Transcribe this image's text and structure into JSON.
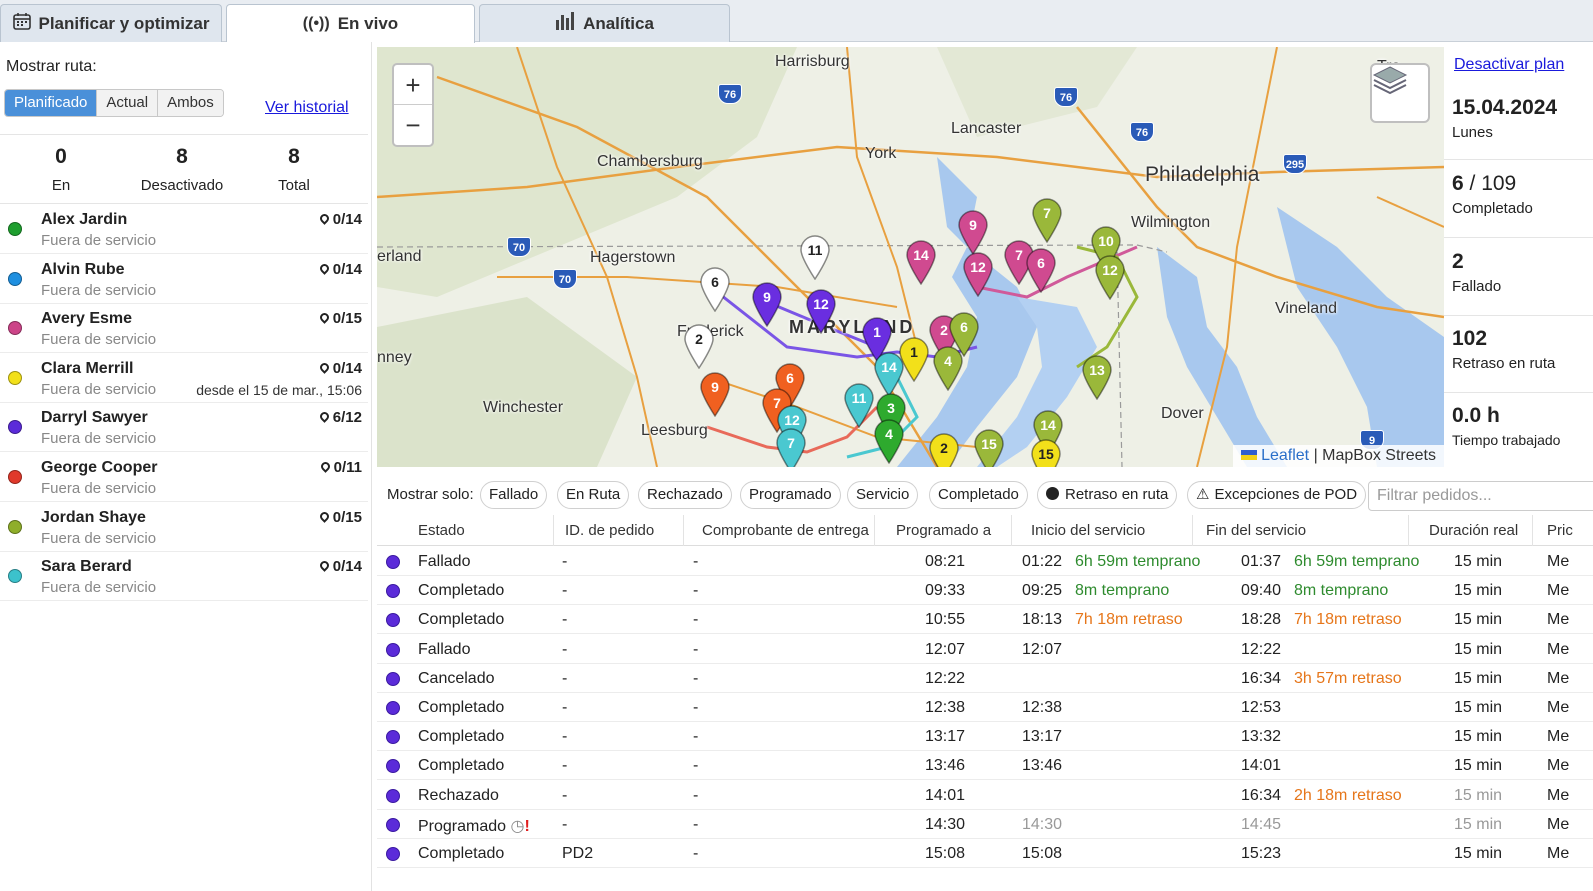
{
  "tabs": [
    {
      "label": "Planificar y optimizar",
      "icon": "calendar-icon"
    },
    {
      "label": "En vivo",
      "icon": "broadcast-icon"
    },
    {
      "label": "Analítica",
      "icon": "bar-chart-icon"
    }
  ],
  "sidebar": {
    "show_route_label": "Mostrar ruta:",
    "route_options": [
      "Planificado",
      "Actual",
      "Ambos"
    ],
    "selected_route_option": "Planificado",
    "history_link": "Ver historial",
    "stats": [
      {
        "value": "0",
        "label": "En"
      },
      {
        "value": "8",
        "label": "Desactivado"
      },
      {
        "value": "8",
        "label": "Total"
      }
    ],
    "drivers": [
      {
        "name": "Alex Jardin",
        "status": "Fuera de servicio",
        "count": "0/14",
        "since": "",
        "color": "#1e9e2e"
      },
      {
        "name": "Alvin Rube",
        "status": "Fuera de servicio",
        "count": "0/14",
        "since": "",
        "color": "#1e8fe0"
      },
      {
        "name": "Avery Esme",
        "status": "Fuera de servicio",
        "count": "0/15",
        "since": "",
        "color": "#cc4488"
      },
      {
        "name": "Clara Merrill",
        "status": "Fuera de servicio",
        "count": "0/14",
        "since": "desde el 15 de mar., 15:06",
        "color": "#f2e01a"
      },
      {
        "name": "Darryl Sawyer",
        "status": "Fuera de servicio",
        "count": "6/12",
        "since": "",
        "color": "#5b2bd9"
      },
      {
        "name": "George Cooper",
        "status": "Fuera de servicio",
        "count": "0/11",
        "since": "",
        "color": "#e0392b"
      },
      {
        "name": "Jordan Shaye",
        "status": "Fuera de servicio",
        "count": "0/15",
        "since": "",
        "color": "#8fae2a"
      },
      {
        "name": "Sara Berard",
        "status": "Fuera de servicio",
        "count": "0/14",
        "since": "",
        "color": "#3cc2cc"
      }
    ]
  },
  "map": {
    "zoom_in": "+",
    "zoom_out": "−",
    "attribution_leaflet": "Leaflet",
    "attribution_rest": "| MapBox Streets",
    "places": [
      {
        "name": "Harrisburg"
      },
      {
        "name": "Lancaster"
      },
      {
        "name": "York"
      },
      {
        "name": "Chambersburg"
      },
      {
        "name": "Philadelphia"
      },
      {
        "name": "Wilmington"
      },
      {
        "name": "Hagerstown"
      },
      {
        "name": "Frederick"
      },
      {
        "name": "MARYLAND"
      },
      {
        "name": "Vineland"
      },
      {
        "name": "Winchester"
      },
      {
        "name": "Leesburg"
      },
      {
        "name": "Dover"
      },
      {
        "name": "Tre"
      },
      {
        "name": "erland"
      },
      {
        "name": "nney"
      }
    ],
    "highway_shields": [
      "76",
      "76",
      "76",
      "70",
      "70",
      "295",
      "9"
    ]
  },
  "summary": {
    "deactivate_link": "Desactivar plan",
    "date": "15.04.2024",
    "weekday": "Lunes",
    "completed_value": "6",
    "completed_total": "/ 109",
    "completed_label": "Completado",
    "failed_value": "2",
    "failed_label": "Fallado",
    "delay_value": "102",
    "delay_label": "Retraso en ruta",
    "worked_value": "0.0 h",
    "worked_label": "Tiempo trabajado"
  },
  "filters": {
    "label": "Mostrar solo:",
    "chips": [
      "Fallado",
      "En Ruta",
      "Rechazado",
      "Programado",
      "Servicio",
      "Completado",
      "Retraso en ruta",
      "Excepciones de POD"
    ],
    "search_placeholder": "Filtrar pedidos..."
  },
  "table": {
    "columns": [
      "Estado",
      "ID. de pedido",
      "Comprobante de entrega",
      "Programado a",
      "Inicio del servicio",
      "Fin del servicio",
      "Duración real",
      "Pric"
    ],
    "rows": [
      {
        "estado": "Fallado",
        "id": "-",
        "pod": "-",
        "prog": "08:21",
        "inicio": "01:22",
        "inicio_note": "6h 59m temprano",
        "inicio_note_type": "early",
        "fin": "01:37",
        "fin_note": "6h 59m temprano",
        "fin_note_type": "early",
        "dur": "15 min",
        "pri": "Me"
      },
      {
        "estado": "Completado",
        "id": "-",
        "pod": "-",
        "prog": "09:33",
        "inicio": "09:25",
        "inicio_note": "8m temprano",
        "inicio_note_type": "early",
        "fin": "09:40",
        "fin_note": "8m temprano",
        "fin_note_type": "early",
        "dur": "15 min",
        "pri": "Me"
      },
      {
        "estado": "Completado",
        "id": "-",
        "pod": "-",
        "prog": "10:55",
        "inicio": "18:13",
        "inicio_note": "7h 18m retraso",
        "inicio_note_type": "late",
        "fin": "18:28",
        "fin_note": "7h 18m retraso",
        "fin_note_type": "late",
        "dur": "15 min",
        "pri": "Me"
      },
      {
        "estado": "Fallado",
        "id": "-",
        "pod": "-",
        "prog": "12:07",
        "inicio": "12:07",
        "inicio_note": "",
        "inicio_note_type": "",
        "fin": "12:22",
        "fin_note": "",
        "fin_note_type": "",
        "dur": "15 min",
        "pri": "Me"
      },
      {
        "estado": "Cancelado",
        "id": "-",
        "pod": "-",
        "prog": "12:22",
        "inicio": "",
        "inicio_note": "",
        "inicio_note_type": "",
        "fin": "16:34",
        "fin_note": "3h 57m retraso",
        "fin_note_type": "late",
        "dur": "15 min",
        "pri": "Me"
      },
      {
        "estado": "Completado",
        "id": "-",
        "pod": "-",
        "prog": "12:38",
        "inicio": "12:38",
        "inicio_note": "",
        "inicio_note_type": "",
        "fin": "12:53",
        "fin_note": "",
        "fin_note_type": "",
        "dur": "15 min",
        "pri": "Me"
      },
      {
        "estado": "Completado",
        "id": "-",
        "pod": "-",
        "prog": "13:17",
        "inicio": "13:17",
        "inicio_note": "",
        "inicio_note_type": "",
        "fin": "13:32",
        "fin_note": "",
        "fin_note_type": "",
        "dur": "15 min",
        "pri": "Me"
      },
      {
        "estado": "Completado",
        "id": "-",
        "pod": "-",
        "prog": "13:46",
        "inicio": "13:46",
        "inicio_note": "",
        "inicio_note_type": "",
        "fin": "14:01",
        "fin_note": "",
        "fin_note_type": "",
        "dur": "15 min",
        "pri": "Me"
      },
      {
        "estado": "Rechazado",
        "id": "-",
        "pod": "-",
        "prog": "14:01",
        "inicio": "",
        "inicio_note": "",
        "inicio_note_type": "",
        "fin": "16:34",
        "fin_note": "2h 18m retraso",
        "fin_note_type": "late",
        "dur": "15 min",
        "pri": "Me",
        "dim_dur": true
      },
      {
        "estado": "Programado",
        "id": "-",
        "pod": "-",
        "prog": "14:30",
        "inicio": "14:30",
        "inicio_note": "",
        "inicio_note_type": "",
        "fin": "14:45",
        "fin_note": "",
        "fin_note_type": "",
        "dur": "15 min",
        "pri": "Me",
        "scheduled": true,
        "clock": "◷",
        "warning": "!"
      },
      {
        "estado": "Completado",
        "id": "PD2",
        "pod": "-",
        "prog": "15:08",
        "inicio": "15:08",
        "inicio_note": "",
        "inicio_note_type": "",
        "fin": "15:23",
        "fin_note": "",
        "fin_note_type": "",
        "dur": "15 min",
        "pri": "Me"
      }
    ]
  }
}
